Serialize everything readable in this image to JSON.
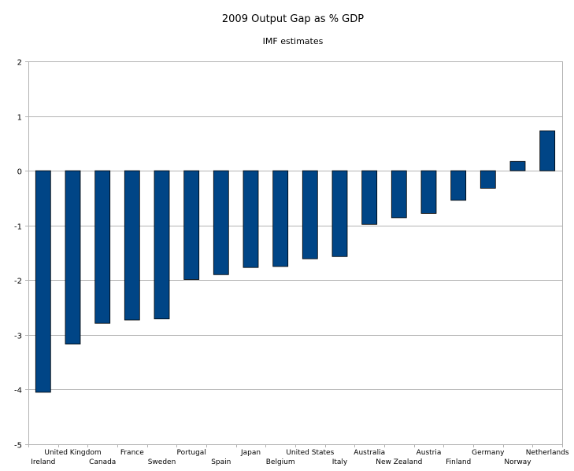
{
  "chart_data": {
    "type": "bar",
    "title": "2009 Output Gap as % GDP",
    "subtitle": "IMF estimates",
    "xlabel": "",
    "ylabel": "",
    "ylim": [
      -5,
      2
    ],
    "yticks": [
      "2",
      "1",
      "0",
      "-1",
      "-2",
      "-3",
      "-4",
      "-5"
    ],
    "grid": true,
    "legend": "none",
    "bar_color": "#004586",
    "categories": [
      "Ireland",
      "United Kingdom",
      "Canada",
      "France",
      "Sweden",
      "Portugal",
      "Spain",
      "Japan",
      "Belgium",
      "United States",
      "Italy",
      "Australia",
      "New Zealand",
      "Austria",
      "Finland",
      "Germany",
      "Norway",
      "Netherlands"
    ],
    "values": [
      -4.05,
      -3.17,
      -2.79,
      -2.73,
      -2.71,
      -1.99,
      -1.9,
      -1.77,
      -1.75,
      -1.61,
      -1.57,
      -0.98,
      -0.86,
      -0.78,
      -0.54,
      -0.32,
      0.17,
      0.73
    ]
  }
}
